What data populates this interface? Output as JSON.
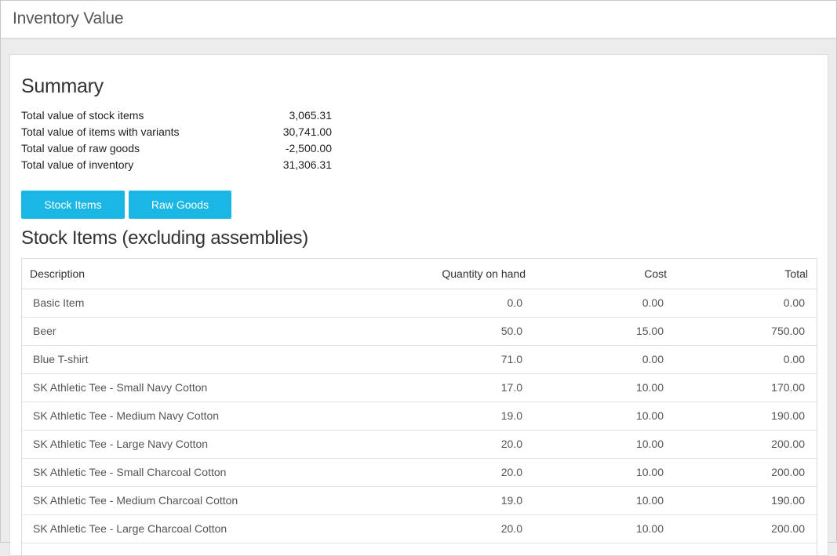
{
  "header": {
    "title": "Inventory Value"
  },
  "summary": {
    "title": "Summary",
    "rows": [
      {
        "label": "Total value of stock items",
        "value": "3,065.31"
      },
      {
        "label": "Total value of items with variants",
        "value": "30,741.00"
      },
      {
        "label": "Total value of raw goods",
        "value": "-2,500.00"
      },
      {
        "label": "Total value of inventory",
        "value": "31,306.31"
      }
    ]
  },
  "buttons": {
    "stock_items": "Stock Items",
    "raw_goods": "Raw Goods"
  },
  "colors": {
    "accent": "#1ab7e4"
  },
  "stock_table": {
    "title": "Stock Items (excluding assemblies)",
    "columns": [
      "Description",
      "Quantity on hand",
      "Cost",
      "Total"
    ],
    "rows": [
      [
        "Basic Item",
        "0.0",
        "0.00",
        "0.00"
      ],
      [
        "Beer",
        "50.0",
        "15.00",
        "750.00"
      ],
      [
        "Blue T-shirt",
        "71.0",
        "0.00",
        "0.00"
      ],
      [
        "SK Athletic Tee - Small Navy Cotton",
        "17.0",
        "10.00",
        "170.00"
      ],
      [
        "SK Athletic Tee - Medium Navy Cotton",
        "19.0",
        "10.00",
        "190.00"
      ],
      [
        "SK Athletic Tee - Large Navy Cotton",
        "20.0",
        "10.00",
        "200.00"
      ],
      [
        "SK Athletic Tee - Small Charcoal Cotton",
        "20.0",
        "10.00",
        "200.00"
      ],
      [
        "SK Athletic Tee - Medium Charcoal Cotton",
        "19.0",
        "10.00",
        "190.00"
      ],
      [
        "SK Athletic Tee - Large Charcoal Cotton",
        "20.0",
        "10.00",
        "200.00"
      ]
    ]
  }
}
